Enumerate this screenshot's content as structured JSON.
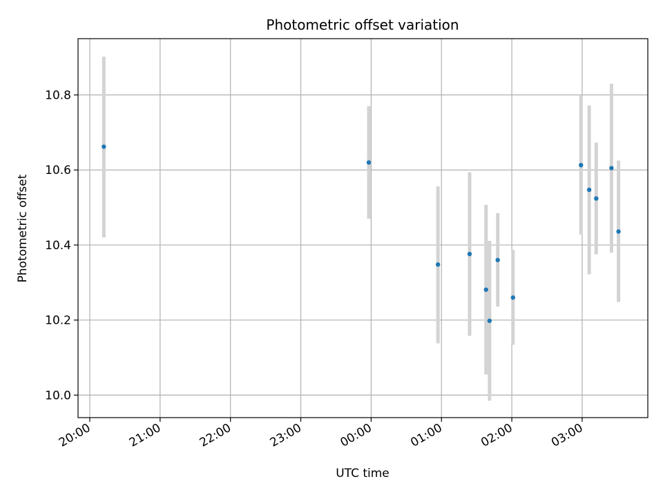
{
  "chart_data": {
    "type": "scatter",
    "title": "Photometric offset variation",
    "xlabel": "UTC time",
    "ylabel": "Photometric offset",
    "x_ticks": [
      "20:00",
      "21:00",
      "22:00",
      "23:00",
      "00:00",
      "01:00",
      "02:00",
      "03:00"
    ],
    "y_ticks": [
      "10.0",
      "10.2",
      "10.4",
      "10.6",
      "10.8"
    ],
    "xlim": [
      "19:50",
      "03:56"
    ],
    "ylim": [
      9.94,
      10.95
    ],
    "grid": true,
    "point_color": "#1f77b4",
    "errorbar_color": "#d3d3d3",
    "series": [
      {
        "points": [
          {
            "time": "20:12",
            "y": 10.662,
            "ylow": 10.42,
            "yhigh": 10.902
          },
          {
            "time": "23:58",
            "y": 10.62,
            "ylow": 10.47,
            "yhigh": 10.77
          },
          {
            "time": "00:57",
            "y": 10.348,
            "ylow": 10.138,
            "yhigh": 10.556
          },
          {
            "time": "01:24",
            "y": 10.376,
            "ylow": 10.158,
            "yhigh": 10.594
          },
          {
            "time": "01:38",
            "y": 10.281,
            "ylow": 10.055,
            "yhigh": 10.507
          },
          {
            "time": "01:41",
            "y": 10.198,
            "ylow": 9.985,
            "yhigh": 10.411
          },
          {
            "time": "01:48",
            "y": 10.36,
            "ylow": 10.236,
            "yhigh": 10.485
          },
          {
            "time": "02:01",
            "y": 10.26,
            "ylow": 10.134,
            "yhigh": 10.387
          },
          {
            "time": "02:59",
            "y": 10.613,
            "ylow": 10.428,
            "yhigh": 10.798
          },
          {
            "time": "03:06",
            "y": 10.547,
            "ylow": 10.322,
            "yhigh": 10.772
          },
          {
            "time": "03:12",
            "y": 10.524,
            "ylow": 10.375,
            "yhigh": 10.673
          },
          {
            "time": "03:25",
            "y": 10.605,
            "ylow": 10.38,
            "yhigh": 10.83
          },
          {
            "time": "03:31",
            "y": 10.436,
            "ylow": 10.248,
            "yhigh": 10.625
          }
        ]
      }
    ]
  }
}
